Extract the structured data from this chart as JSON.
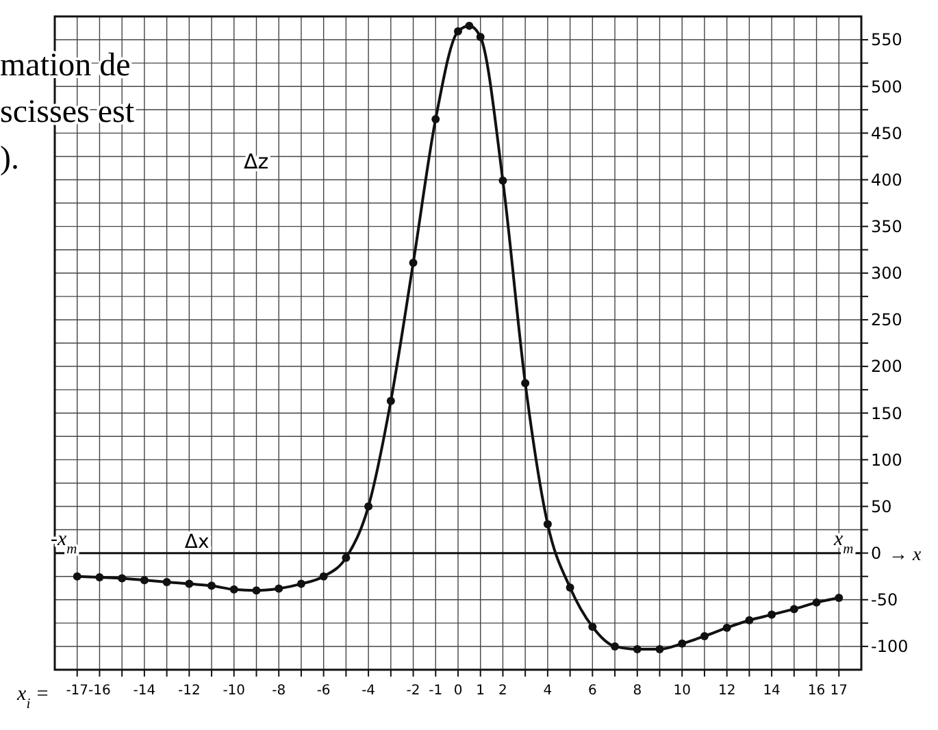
{
  "chart_data": {
    "type": "line",
    "xlabel": "x$_{i}$ =",
    "annotations": [
      "mation de",
      "scisses est",
      ").",
      "Δz",
      "Δx",
      "-x$_{m}$",
      "x$_{m}$",
      "→ x"
    ],
    "x": [
      -17,
      -16,
      -15,
      -14,
      -13,
      -12,
      -11,
      -10,
      -9,
      -8,
      -7,
      -6,
      -5,
      -4,
      -3,
      -2,
      -1,
      0,
      0.5,
      1,
      2,
      3,
      4,
      5,
      6,
      7,
      8,
      9,
      10,
      11,
      12,
      13,
      14,
      15,
      16,
      17
    ],
    "series": [
      {
        "color": "#111111",
        "values": [
          -25,
          -26,
          -27,
          -29,
          -31,
          -33,
          -35,
          -39,
          -40,
          -38,
          -33,
          -25,
          -5,
          50,
          163,
          311,
          465,
          559,
          565,
          553,
          399,
          182,
          31,
          -37,
          -79,
          -100,
          -103,
          -103,
          -97,
          -89,
          -80,
          -72,
          -66,
          -60,
          -53,
          -48
        ]
      }
    ],
    "xlim": [
      -18,
      18
    ],
    "xticks": [
      -17,
      -16,
      {
        "value": -15,
        "label": null
      },
      -14,
      {
        "value": -13,
        "label": null
      },
      -12,
      {
        "value": -11,
        "label": null
      },
      -10,
      {
        "value": -9,
        "label": null
      },
      -8,
      {
        "value": -7,
        "label": null
      },
      -6,
      {
        "value": -5,
        "label": null
      },
      -4,
      {
        "value": -3,
        "label": null
      },
      -2,
      -1,
      0,
      1,
      2,
      {
        "value": 3,
        "label": null
      },
      4,
      {
        "value": 5,
        "label": null
      },
      6,
      {
        "value": 7,
        "label": null
      },
      8,
      {
        "value": 9,
        "label": null
      },
      10,
      {
        "value": 11,
        "label": null
      },
      12,
      {
        "value": 13,
        "label": null
      },
      14,
      {
        "value": 15,
        "label": null
      },
      16,
      17
    ],
    "ylim": [
      -125,
      575
    ],
    "yticks": [
      -100,
      {
        "value": -75,
        "label": null
      },
      -50,
      {
        "value": -25,
        "label": null
      },
      0,
      {
        "value": 25,
        "label": null
      },
      50,
      {
        "value": 75,
        "label": null
      },
      100,
      {
        "value": 125,
        "label": null
      },
      150,
      {
        "value": 175,
        "label": null
      },
      200,
      {
        "value": 225,
        "label": null
      },
      250,
      {
        "value": 275,
        "label": null
      },
      300,
      {
        "value": 325,
        "label": null
      },
      350,
      {
        "value": 375,
        "label": null
      },
      400,
      {
        "value": 425,
        "label": null
      },
      450,
      {
        "value": 475,
        "label": null
      },
      500,
      {
        "value": 525,
        "label": null
      },
      550
    ],
    "grid": true,
    "marker": "circle",
    "line_style": "solid"
  }
}
